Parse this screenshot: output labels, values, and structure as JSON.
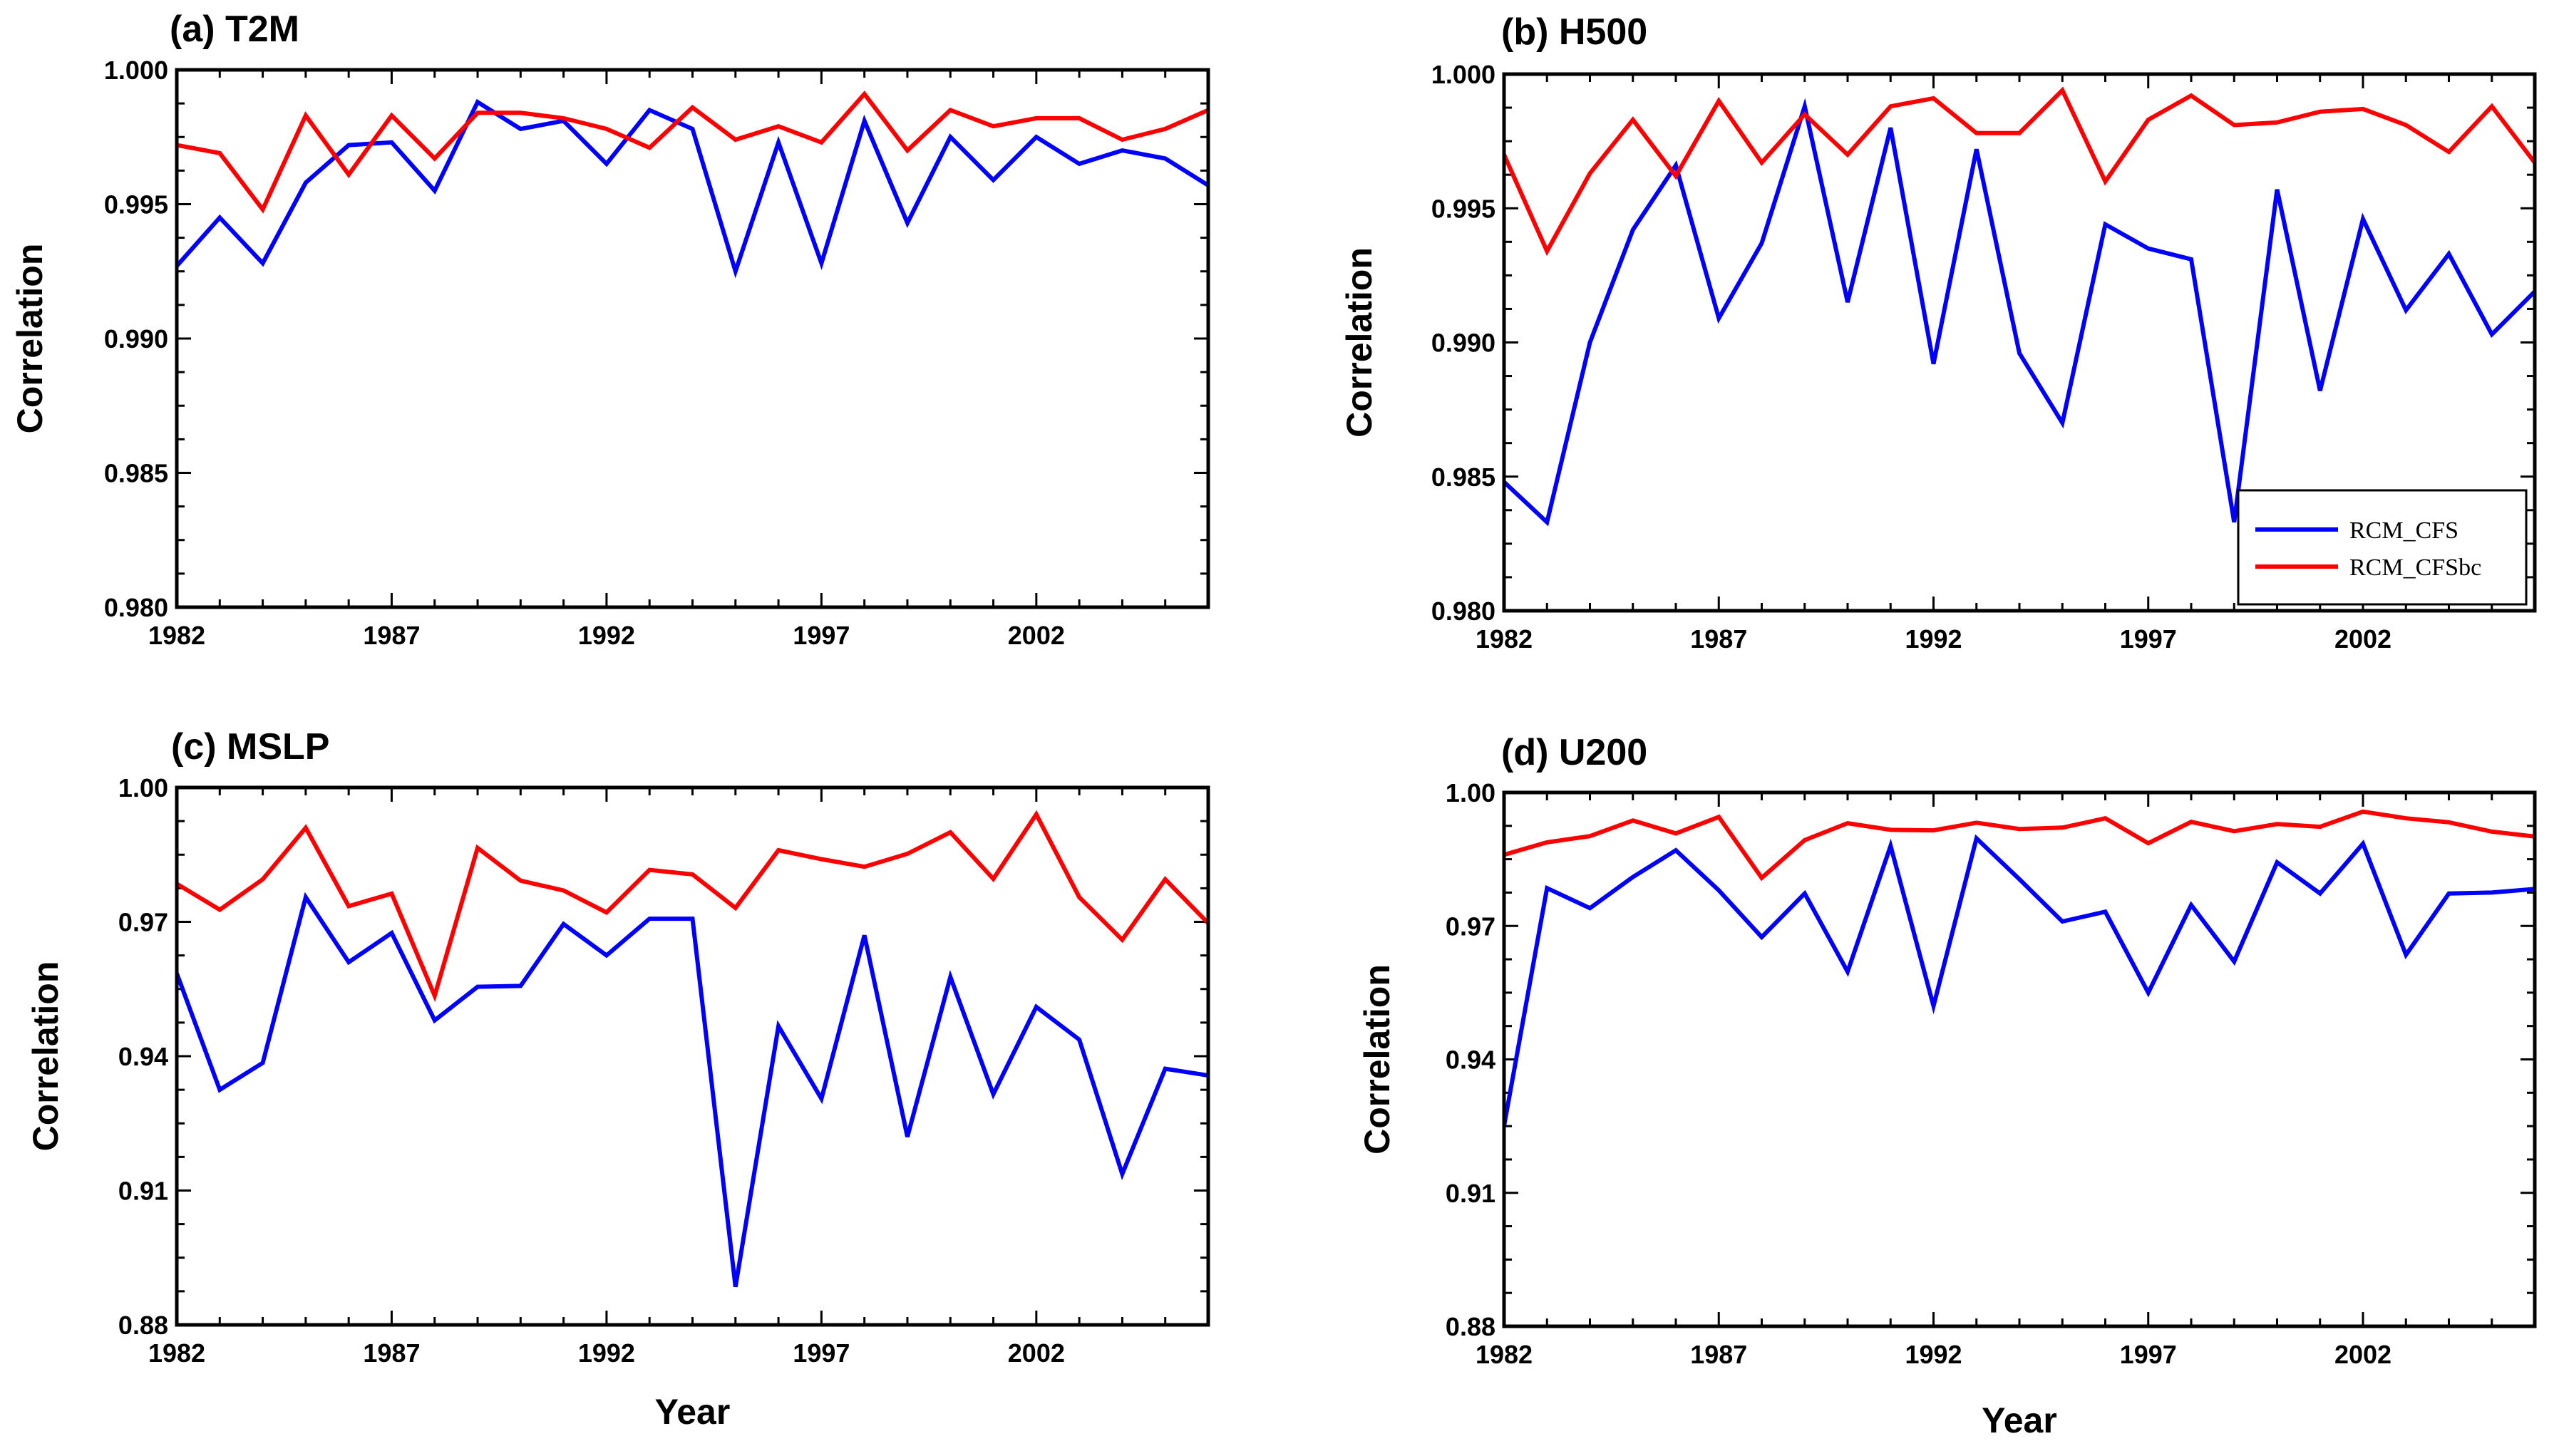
{
  "colors": {
    "series_blue": "#0000ff",
    "series_red": "#ff0000",
    "axis": "#000000",
    "background": "#ffffff"
  },
  "legend": {
    "entries": [
      "RCM_CFS",
      "RCM_CFSbc"
    ],
    "placement": "bottom-right of panel (b)"
  },
  "chart_data": [
    {
      "type": "line",
      "title": "(a) T2M",
      "xlabel": "",
      "ylabel": "Correlation",
      "xlim": [
        1982,
        2006
      ],
      "ylim": [
        0.98,
        1.0
      ],
      "xticks": [
        1982,
        1987,
        1992,
        1997,
        2002
      ],
      "xticklabels": [
        "1982",
        "1987",
        "1992",
        "1997",
        "2002"
      ],
      "yticks": [
        0.98,
        0.985,
        0.99,
        0.995,
        1.0
      ],
      "yticklabels": [
        "0.980",
        "0.985",
        "0.990",
        "0.995",
        "1.000"
      ],
      "x": [
        1982,
        1983,
        1984,
        1985,
        1986,
        1987,
        1988,
        1989,
        1990,
        1991,
        1992,
        1993,
        1994,
        1995,
        1996,
        1997,
        1998,
        1999,
        2000,
        2001,
        2002,
        2003,
        2004,
        2005,
        2006
      ],
      "series": [
        {
          "name": "RCM_CFS",
          "color": "#0000ff",
          "values": [
            0.9927,
            0.9945,
            0.9928,
            0.9958,
            0.9972,
            0.9973,
            0.9955,
            0.9988,
            0.9978,
            0.9981,
            0.9965,
            0.9985,
            0.9978,
            0.9925,
            0.9973,
            0.9928,
            0.9981,
            0.9943,
            0.9975,
            0.9959,
            0.9975,
            0.9965,
            0.997,
            0.9967,
            0.9957
          ]
        },
        {
          "name": "RCM_CFSbc",
          "color": "#ff0000",
          "values": [
            0.9972,
            0.9969,
            0.9948,
            0.9983,
            0.9961,
            0.9983,
            0.9967,
            0.9984,
            0.9984,
            0.9982,
            0.9978,
            0.9971,
            0.9986,
            0.9974,
            0.9979,
            0.9973,
            0.9991,
            0.997,
            0.9985,
            0.9979,
            0.9982,
            0.9982,
            0.9974,
            0.9978,
            0.9985
          ]
        }
      ]
    },
    {
      "type": "line",
      "title": "(b) H500",
      "xlabel": "",
      "ylabel": "Correlation",
      "xlim": [
        1982,
        2006
      ],
      "ylim": [
        0.98,
        1.0
      ],
      "xticks": [
        1982,
        1987,
        1992,
        1997,
        2002
      ],
      "xticklabels": [
        "1982",
        "1987",
        "1992",
        "1997",
        "2002"
      ],
      "yticks": [
        0.98,
        0.985,
        0.99,
        0.995,
        1.0
      ],
      "yticklabels": [
        "0.980",
        "0.985",
        "0.990",
        "0.995",
        "1.000"
      ],
      "x": [
        1982,
        1983,
        1984,
        1985,
        1986,
        1987,
        1988,
        1989,
        1990,
        1991,
        1992,
        1993,
        1994,
        1995,
        1996,
        1997,
        1998,
        1999,
        2000,
        2001,
        2002,
        2003,
        2004,
        2005,
        2006
      ],
      "series": [
        {
          "name": "RCM_CFS",
          "color": "#0000ff",
          "values": [
            0.9848,
            0.9833,
            0.99,
            0.9942,
            0.9966,
            0.9909,
            0.9937,
            0.9988,
            0.9915,
            0.998,
            0.9892,
            0.9972,
            0.9896,
            0.987,
            0.9944,
            0.9935,
            0.9931,
            0.9833,
            0.9957,
            0.9882,
            0.9946,
            0.9912,
            0.9933,
            0.9903,
            0.9919
          ]
        },
        {
          "name": "RCM_CFSbc",
          "color": "#ff0000",
          "values": [
            0.997,
            0.9934,
            0.9963,
            0.9983,
            0.9962,
            0.999,
            0.9967,
            0.9985,
            0.997,
            0.9988,
            0.9991,
            0.9978,
            0.9978,
            0.9994,
            0.996,
            0.9983,
            0.9992,
            0.9981,
            0.9982,
            0.9986,
            0.9987,
            0.9981,
            0.9971,
            0.9988,
            0.9967
          ]
        }
      ]
    },
    {
      "type": "line",
      "title": "(c) MSLP",
      "xlabel": "Year",
      "ylabel": "Correlation",
      "xlim": [
        1982,
        2006
      ],
      "ylim": [
        0.88,
        1.0
      ],
      "xticks": [
        1982,
        1987,
        1992,
        1997,
        2002
      ],
      "xticklabels": [
        "1982",
        "1987",
        "1992",
        "1997",
        "2002"
      ],
      "yticks": [
        0.88,
        0.91,
        0.94,
        0.97,
        1.0
      ],
      "yticklabels": [
        "0.88",
        "0.91",
        "0.94",
        "0.97",
        "1.00"
      ],
      "x": [
        1982,
        1983,
        1984,
        1985,
        1986,
        1987,
        1988,
        1989,
        1990,
        1991,
        1992,
        1993,
        1994,
        1995,
        1996,
        1997,
        1998,
        1999,
        2000,
        2001,
        2002,
        2003,
        2004,
        2005,
        2006
      ],
      "series": [
        {
          "name": "RCM_CFS",
          "color": "#0000ff",
          "values": [
            0.9585,
            0.9325,
            0.9385,
            0.9755,
            0.961,
            0.9675,
            0.948,
            0.9555,
            0.9557,
            0.9695,
            0.9625,
            0.9707,
            0.9707,
            0.8885,
            0.9467,
            0.9305,
            0.967,
            0.922,
            0.9577,
            0.9315,
            0.951,
            0.9437,
            0.9137,
            0.9372,
            0.9357
          ]
        },
        {
          "name": "RCM_CFSbc",
          "color": "#ff0000",
          "values": [
            0.9785,
            0.9727,
            0.9795,
            0.991,
            0.9735,
            0.9763,
            0.9535,
            0.9865,
            0.9792,
            0.977,
            0.9721,
            0.9816,
            0.9806,
            0.9731,
            0.986,
            0.984,
            0.9823,
            0.9852,
            0.99,
            0.9796,
            0.994,
            0.9755,
            0.966,
            0.9795,
            0.9697
          ]
        }
      ]
    },
    {
      "type": "line",
      "title": "(d) U200",
      "xlabel": "Year",
      "ylabel": "Correlation",
      "xlim": [
        1982,
        2006
      ],
      "ylim": [
        0.88,
        1.0
      ],
      "xticks": [
        1982,
        1987,
        1992,
        1997,
        2002
      ],
      "xticklabels": [
        "1982",
        "1987",
        "1992",
        "1997",
        "2002"
      ],
      "yticks": [
        0.88,
        0.91,
        0.94,
        0.97,
        1.0
      ],
      "yticklabels": [
        "0.88",
        "0.91",
        "0.94",
        "0.97",
        "1.00"
      ],
      "x": [
        1982,
        1983,
        1984,
        1985,
        1986,
        1987,
        1988,
        1989,
        1990,
        1991,
        1992,
        1993,
        1994,
        1995,
        1996,
        1997,
        1998,
        1999,
        2000,
        2001,
        2002,
        2003,
        2004,
        2005,
        2006
      ],
      "series": [
        {
          "name": "RCM_CFS",
          "color": "#0000ff",
          "values": [
            0.925,
            0.9785,
            0.974,
            0.981,
            0.987,
            0.978,
            0.9675,
            0.9773,
            0.9597,
            0.988,
            0.952,
            0.9897,
            0.9805,
            0.971,
            0.9732,
            0.955,
            0.9747,
            0.962,
            0.9843,
            0.9773,
            0.9885,
            0.9635,
            0.9773,
            0.9775,
            0.9783
          ]
        },
        {
          "name": "RCM_CFSbc",
          "color": "#ff0000",
          "values": [
            0.986,
            0.9888,
            0.9902,
            0.9937,
            0.9908,
            0.9945,
            0.9808,
            0.9893,
            0.9931,
            0.9916,
            0.9915,
            0.9932,
            0.9918,
            0.9921,
            0.9942,
            0.9886,
            0.9934,
            0.9913,
            0.9929,
            0.9923,
            0.9957,
            0.9942,
            0.9933,
            0.9912,
            0.9901
          ]
        }
      ]
    }
  ]
}
